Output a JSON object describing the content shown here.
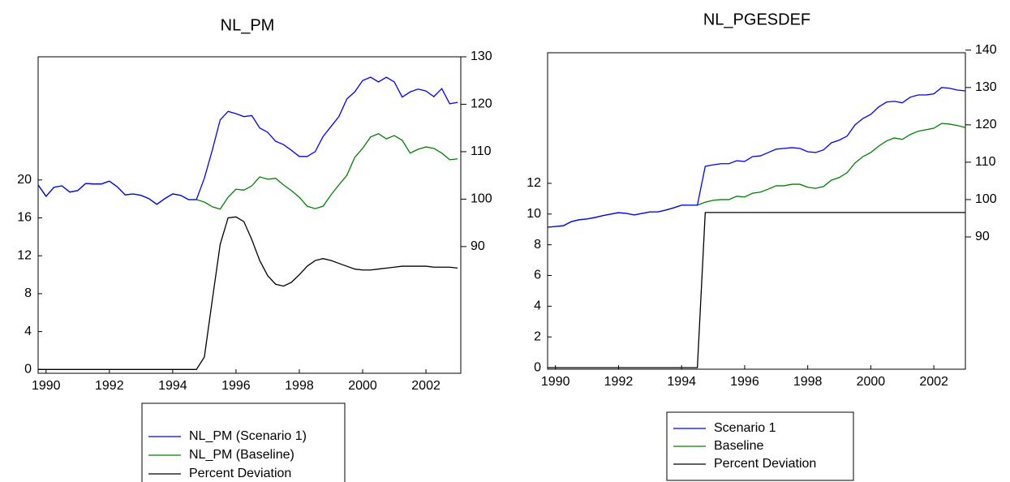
{
  "chart_data": [
    {
      "type": "line",
      "title": "NL_PM",
      "legend": "bottom",
      "x": [
        1989.75,
        1990,
        1990.25,
        1990.5,
        1990.75,
        1991,
        1991.25,
        1991.5,
        1991.75,
        1992,
        1992.25,
        1992.5,
        1992.75,
        1993,
        1993.25,
        1993.5,
        1993.75,
        1994,
        1994.25,
        1994.5,
        1994.75,
        1995,
        1995.25,
        1995.5,
        1995.75,
        1996,
        1996.25,
        1996.5,
        1996.75,
        1997,
        1997.25,
        1997.5,
        1997.75,
        1998,
        1998.25,
        1998.5,
        1998.75,
        1999,
        1999.25,
        1999.5,
        1999.75,
        2000,
        2000.25,
        2000.5,
        2000.75,
        2001,
        2001.25,
        2001.5,
        2001.75,
        2002,
        2002.25,
        2002.5,
        2002.75,
        2003
      ],
      "xlim": [
        1989.75,
        2003.1
      ],
      "xticks": [
        1990,
        1992,
        1994,
        1996,
        1998,
        2000,
        2002
      ],
      "ylim": [
        -0.4,
        33
      ],
      "yticks": [
        0,
        4,
        8,
        12,
        16,
        20
      ],
      "y2lim": [
        63.3,
        130
      ],
      "y2ticks": [
        90,
        100,
        110,
        120,
        130
      ],
      "series": [
        {
          "name": "NL_PM (Scenario 1)",
          "color": "#0000ff",
          "axis": "y2",
          "values": [
            103,
            100.6,
            102.5,
            102.8,
            101.5,
            101.8,
            103.3,
            103.2,
            103.2,
            103.8,
            102.6,
            100.9,
            101.1,
            100.8,
            100.1,
            98.9,
            100.1,
            101.1,
            100.8,
            99.9,
            99.9,
            104.4,
            110.3,
            116.7,
            118.5,
            118,
            117.4,
            117.6,
            115,
            114.1,
            112.2,
            111.5,
            110.3,
            109,
            109,
            110,
            113.2,
            115.3,
            117.4,
            121.1,
            122.6,
            125,
            125.7,
            124.7,
            125.7,
            124.7,
            121.5,
            122.6,
            123.2,
            122.8,
            121.6,
            123.3,
            120.1,
            120.4
          ]
        },
        {
          "name": "NL_PM (Baseline)",
          "color": "#008000",
          "axis": "y2",
          "values": [
            103,
            100.6,
            102.5,
            102.8,
            101.5,
            101.8,
            103.3,
            103.2,
            103.2,
            103.8,
            102.6,
            100.9,
            101.1,
            100.8,
            100.1,
            98.9,
            100.1,
            101.1,
            100.8,
            99.9,
            99.9,
            99.4,
            98.4,
            97.9,
            100.4,
            102.1,
            101.9,
            102.8,
            104.7,
            104.2,
            104.4,
            103,
            101.8,
            100.4,
            98.5,
            98,
            98.5,
            100.9,
            103,
            105,
            108.8,
            110.7,
            113.1,
            113.8,
            112.7,
            113.4,
            112.4,
            109.7,
            110.5,
            111,
            110.7,
            109.7,
            108.3,
            108.5
          ]
        },
        {
          "name": "Percent Deviation",
          "color": "#000000",
          "axis": "y",
          "values": [
            0,
            0,
            0,
            0,
            0,
            0,
            0,
            0,
            0,
            0,
            0,
            0,
            0,
            0,
            0,
            0,
            0,
            0,
            0,
            0,
            0,
            1.3,
            7.3,
            13.2,
            16,
            16.1,
            15.6,
            13.7,
            11.5,
            9.9,
            9,
            8.8,
            9.2,
            10,
            10.9,
            11.5,
            11.7,
            11.5,
            11.2,
            10.9,
            10.6,
            10.5,
            10.5,
            10.6,
            10.7,
            10.8,
            10.9,
            10.9,
            10.9,
            10.9,
            10.8,
            10.8,
            10.8,
            10.7
          ]
        }
      ]
    },
    {
      "type": "line",
      "title": "NL_PGESDEF",
      "legend": "bottom",
      "x": [
        1989.75,
        1990,
        1990.25,
        1990.5,
        1990.75,
        1991,
        1991.25,
        1991.5,
        1991.75,
        1992,
        1992.25,
        1992.5,
        1992.75,
        1993,
        1993.25,
        1993.5,
        1993.75,
        1994,
        1994.25,
        1994.5,
        1994.75,
        1995,
        1995.25,
        1995.5,
        1995.75,
        1996,
        1996.25,
        1996.5,
        1996.75,
        1997,
        1997.25,
        1997.5,
        1997.75,
        1998,
        1998.25,
        1998.5,
        1998.75,
        1999,
        1999.25,
        1999.5,
        1999.75,
        2000,
        2000.25,
        2000.5,
        2000.75,
        2001,
        2001.25,
        2001.5,
        2001.75,
        2002,
        2002.25,
        2002.5,
        2002.75,
        2003
      ],
      "xlim": [
        1989.75,
        2003.0
      ],
      "xticks": [
        1990,
        1992,
        1994,
        1996,
        1998,
        2000,
        2002
      ],
      "ylim": [
        -0.1,
        20.5
      ],
      "yticks": [
        0,
        2,
        4,
        6,
        8,
        10,
        12
      ],
      "y2lim": [
        54.6,
        139.3
      ],
      "y2ticks": [
        90,
        100,
        110,
        120,
        130,
        140
      ],
      "series": [
        {
          "name": "Scenario 1",
          "color": "#0000ff",
          "axis": "y2",
          "values": [
            92.6,
            92.8,
            93.0,
            94.1,
            94.6,
            94.8,
            95.2,
            95.7,
            96.1,
            96.5,
            96.3,
            95.9,
            96.3,
            96.7,
            96.7,
            97.2,
            97.8,
            98.5,
            98.5,
            98.5,
            108.9,
            109.3,
            109.6,
            109.6,
            110.4,
            110.2,
            111.5,
            111.7,
            112.6,
            113.5,
            113.7,
            113.9,
            113.7,
            112.8,
            112.6,
            113.3,
            115.2,
            115.9,
            117,
            120,
            121.7,
            122.8,
            124.8,
            126.1,
            126.3,
            125.9,
            127.4,
            128,
            128,
            128.3,
            130,
            129.8,
            129.3,
            129.1
          ]
        },
        {
          "name": "Baseline",
          "color": "#008000",
          "axis": "y2",
          "values": [
            92.6,
            92.8,
            93.0,
            94.1,
            94.6,
            94.8,
            95.2,
            95.7,
            96.1,
            96.5,
            96.3,
            95.9,
            96.3,
            96.7,
            96.7,
            97.2,
            97.8,
            98.5,
            98.5,
            98.5,
            99.3,
            99.8,
            100,
            100,
            100.9,
            100.7,
            101.7,
            102,
            102.8,
            103.7,
            103.7,
            104.1,
            104.1,
            103.3,
            103,
            103.5,
            105.2,
            105.9,
            107.2,
            109.8,
            111.5,
            112.6,
            114.3,
            115.7,
            116.5,
            116.1,
            117.4,
            118.3,
            118.7,
            119.1,
            120.4,
            120.2,
            119.8,
            119.3
          ]
        },
        {
          "name": "Percent Deviation",
          "color": "#000000",
          "axis": "y",
          "values": [
            0,
            0,
            0,
            0,
            0,
            0,
            0,
            0,
            0,
            0,
            0,
            0,
            0,
            0,
            0,
            0,
            0,
            0,
            0,
            0,
            10.1,
            10.1,
            10.1,
            10.1,
            10.1,
            10.1,
            10.1,
            10.1,
            10.1,
            10.1,
            10.1,
            10.1,
            10.1,
            10.1,
            10.1,
            10.1,
            10.1,
            10.1,
            10.1,
            10.1,
            10.1,
            10.1,
            10.1,
            10.1,
            10.1,
            10.1,
            10.1,
            10.1,
            10.1,
            10.1,
            10.1,
            10.1,
            10.1,
            10.1
          ]
        }
      ]
    }
  ]
}
